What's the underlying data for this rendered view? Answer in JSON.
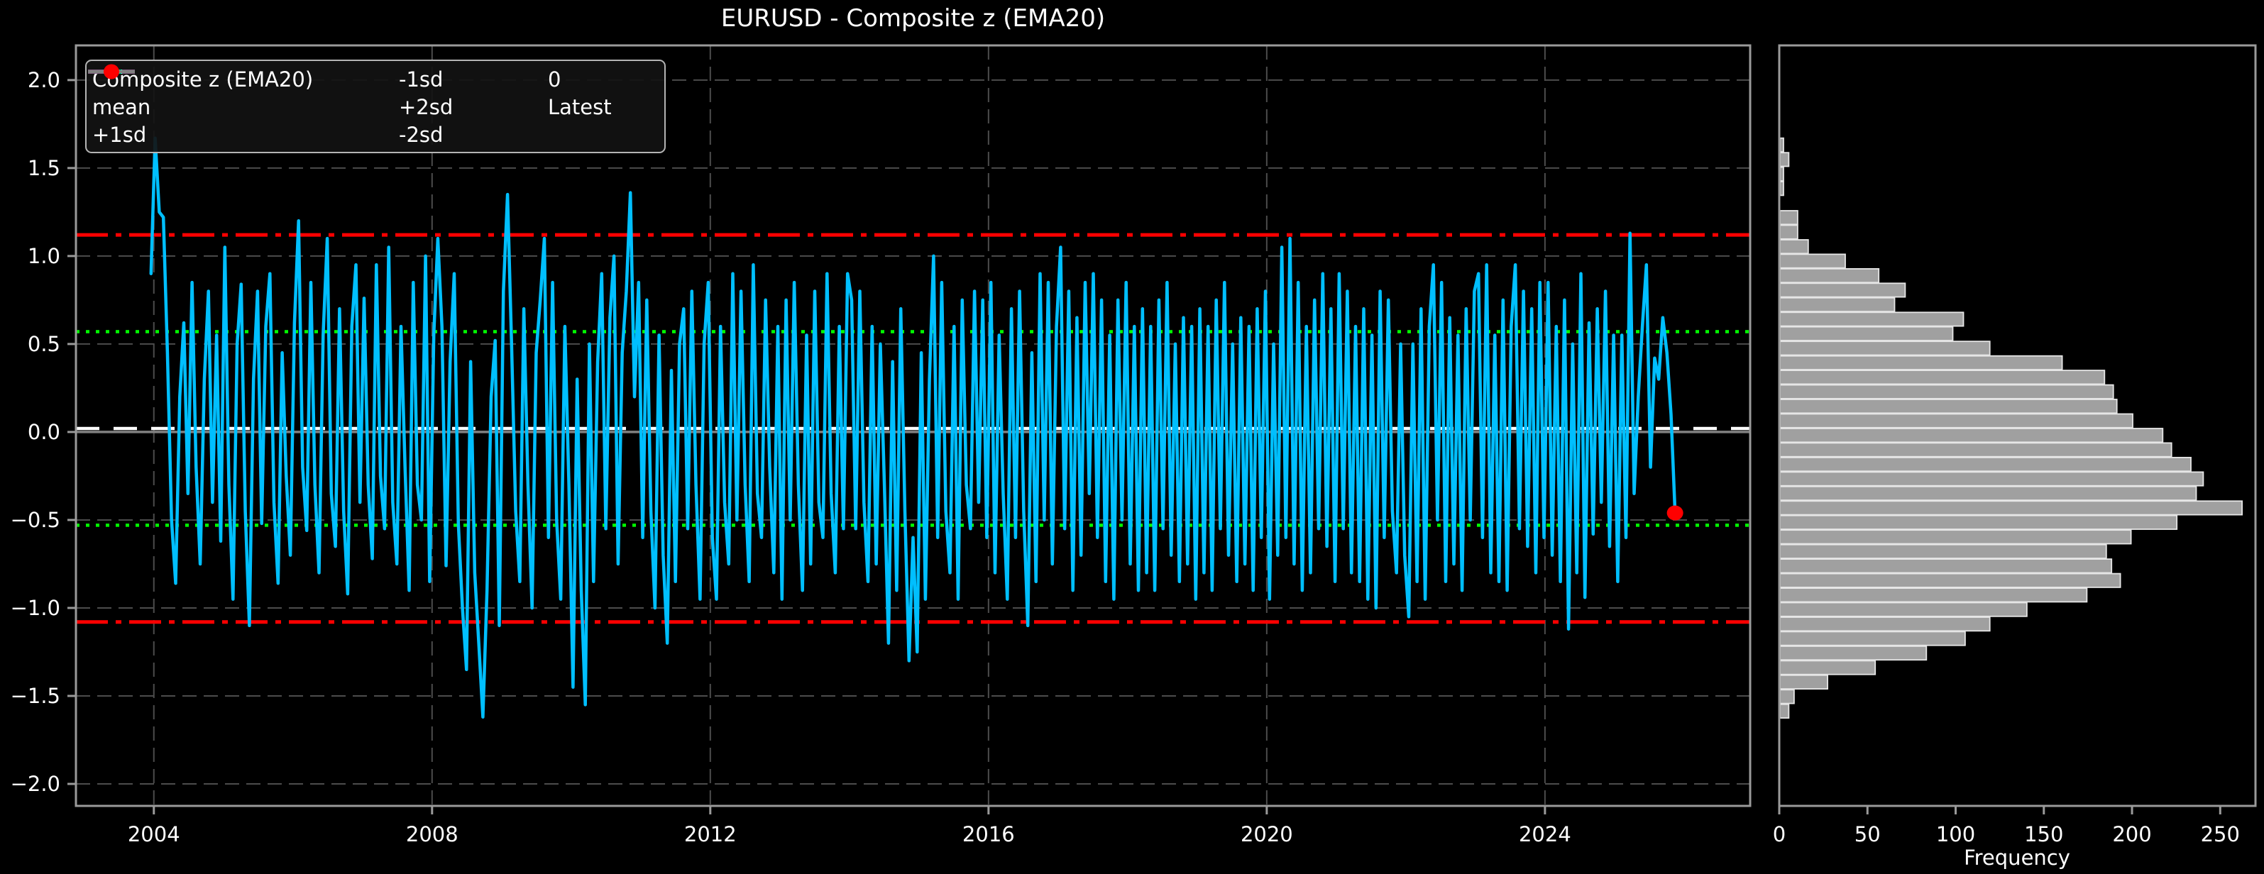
{
  "title": "EURUSD - Composite z (EMA20)",
  "colors": {
    "background": "#000000",
    "text": "#ffffff",
    "grid": "#4c4c4c",
    "spine": "#9a9a9a",
    "series": "#00bfff",
    "mean": "#ffffff",
    "sd1": "#00ff00",
    "sd2": "#ff0000",
    "zero": "#808080",
    "latest": "#ff0000",
    "hist_fill": "#a0a0a0",
    "hist_edge": "#e6e6e6"
  },
  "legend": {
    "items": [
      {
        "label": "Composite z (EMA20)",
        "style": "solid-cyan"
      },
      {
        "label": "mean",
        "style": "dashed-white"
      },
      {
        "label": "+1sd",
        "style": "dotted-green"
      },
      {
        "label": "-1sd",
        "style": "dotted-green"
      },
      {
        "label": "+2sd",
        "style": "dashdot-red"
      },
      {
        "label": "-2sd",
        "style": "dashdot-red"
      },
      {
        "label": "0",
        "style": "solid-gray"
      },
      {
        "label": "Latest",
        "style": "red-dot"
      }
    ]
  },
  "chart_data": [
    {
      "type": "line",
      "title": "EURUSD - Composite z (EMA20)",
      "xlabel": "",
      "ylabel": "",
      "grid": true,
      "legend_position": "upper left",
      "xlim": [
        2002.88,
        2026.95
      ],
      "ylim": [
        -2.125,
        2.197
      ],
      "xticks": [
        2004,
        2008,
        2012,
        2016,
        2020,
        2024
      ],
      "xtick_labels": [
        "2004",
        "2008",
        "2012",
        "2016",
        "2020",
        "2024"
      ],
      "yticks": [
        2.0,
        1.5,
        1.0,
        0.5,
        0.0,
        -0.5,
        -1.0,
        -1.5,
        -2.0
      ],
      "ytick_labels": [
        "2.0",
        "1.5",
        "1.0",
        "0.5",
        "0.0",
        "−0.5",
        "−1.0",
        "−1.5",
        "−2.0"
      ],
      "ref_lines": [
        {
          "name": "mean",
          "value": 0.02
        },
        {
          "name": "+1sd",
          "value": 0.57
        },
        {
          "name": "-1sd",
          "value": -0.53
        },
        {
          "name": "+2sd",
          "value": 1.12
        },
        {
          "name": "-2sd",
          "value": -1.08
        },
        {
          "name": "0",
          "value": 0.0
        }
      ],
      "latest_point": {
        "x": 2025.87,
        "y": -0.46
      },
      "series": [
        {
          "name": "Composite z (EMA20)",
          "x_start": 2003.96,
          "x_step": 0.0589,
          "values": [
            0.9,
            1.67,
            1.25,
            1.22,
            0.45,
            -0.5,
            -0.86,
            0.2,
            0.62,
            -0.35,
            0.85,
            -0.2,
            -0.75,
            0.3,
            0.8,
            -0.4,
            0.55,
            -0.62,
            1.05,
            -0.3,
            -0.95,
            0.5,
            0.84,
            -0.45,
            -1.1,
            0.3,
            0.8,
            -0.52,
            0.6,
            0.9,
            -0.4,
            -0.86,
            0.45,
            -0.25,
            -0.7,
            0.62,
            1.2,
            -0.2,
            -0.56,
            0.85,
            -0.3,
            -0.8,
            0.55,
            1.1,
            -0.35,
            -0.65,
            0.7,
            -0.45,
            -0.92,
            0.6,
            0.95,
            -0.4,
            0.76,
            -0.3,
            -0.72,
            0.95,
            -0.25,
            -0.55,
            1.05,
            -0.4,
            -0.75,
            0.6,
            -0.2,
            -0.9,
            0.85,
            -0.3,
            -0.5,
            1.0,
            -0.85,
            0.55,
            1.1,
            0.6,
            -0.76,
            0.4,
            0.9,
            -0.52,
            -1.0,
            -1.35,
            0.4,
            -0.8,
            -1.2,
            -1.62,
            -0.9,
            0.2,
            0.52,
            -1.1,
            0.8,
            1.35,
            0.5,
            -0.45,
            -0.85,
            0.7,
            -0.3,
            -1.0,
            0.45,
            0.75,
            1.1,
            -0.6,
            0.85,
            -0.5,
            -0.95,
            0.6,
            -0.3,
            -1.45,
            0.3,
            -0.9,
            -1.55,
            0.5,
            -0.85,
            0.4,
            0.9,
            -0.55,
            0.65,
            1.0,
            -0.75,
            0.45,
            0.8,
            1.36,
            0.2,
            0.85,
            -0.6,
            0.75,
            -0.45,
            -1.0,
            0.55,
            -0.7,
            -1.2,
            0.35,
            -0.85,
            0.5,
            0.7,
            -0.55,
            0.8,
            -0.3,
            -0.95,
            0.5,
            0.85,
            -0.6,
            -0.95,
            0.6,
            -0.4,
            -0.75,
            0.9,
            -0.5,
            0.8,
            -0.3,
            -0.85,
            0.95,
            -0.35,
            -0.6,
            0.75,
            -0.2,
            -0.8,
            0.6,
            -0.95,
            0.75,
            -0.5,
            0.85,
            -0.3,
            -0.9,
            0.55,
            -0.75,
            0.8,
            -0.4,
            -0.6,
            0.9,
            -0.35,
            -0.8,
            0.6,
            -0.55,
            0.9,
            0.75,
            -0.55,
            0.8,
            -0.4,
            -0.85,
            0.6,
            -0.75,
            0.5,
            -0.3,
            -1.2,
            0.4,
            -0.9,
            0.7,
            -0.45,
            -1.3,
            -0.6,
            -1.25,
            0.45,
            -0.95,
            0.3,
            1.0,
            -0.6,
            0.85,
            -0.45,
            -0.8,
            0.6,
            -0.95,
            0.75,
            -0.3,
            -0.55,
            0.8,
            -0.4,
            0.75,
            -0.6,
            0.85,
            -0.8,
            0.55,
            -0.35,
            -0.95,
            0.7,
            -0.6,
            0.8,
            -0.45,
            -1.1,
            0.45,
            -0.85,
            0.9,
            -0.5,
            0.85,
            -0.75,
            0.6,
            1.05,
            -0.55,
            0.8,
            -0.9,
            0.65,
            -0.7,
            0.85,
            -0.35,
            0.9,
            -0.6,
            0.75,
            -0.85,
            0.55,
            -0.95,
            0.75,
            -0.5,
            0.85,
            -0.75,
            0.6,
            -0.9,
            0.7,
            -0.8,
            0.6,
            -0.9,
            0.75,
            -0.55,
            0.85,
            -0.7,
            0.5,
            -0.85,
            0.65,
            -0.75,
            0.6,
            -0.95,
            0.7,
            -0.8,
            0.6,
            -0.9,
            0.75,
            -0.55,
            0.85,
            -0.7,
            0.5,
            -0.85,
            0.65,
            -0.75,
            0.6,
            -0.9,
            0.7,
            -0.6,
            0.8,
            -0.95,
            0.5,
            -0.7,
            1.05,
            -0.6,
            1.1,
            -0.75,
            0.85,
            -0.9,
            0.6,
            -0.8,
            0.75,
            -0.55,
            0.9,
            -0.65,
            0.7,
            -0.85,
            0.9,
            -0.55,
            0.8,
            -0.8,
            0.6,
            -0.85,
            0.7,
            -0.95,
            0.55,
            -1.0,
            0.8,
            -0.6,
            0.75,
            -0.45,
            -0.8,
            0.5,
            -0.7,
            -1.05,
            0.5,
            -0.85,
            0.7,
            -0.95,
            0.6,
            0.95,
            -0.5,
            0.85,
            -0.85,
            0.65,
            -0.75,
            0.55,
            -0.9,
            0.7,
            -0.5,
            0.8,
            0.9,
            -0.6,
            0.95,
            -0.8,
            0.55,
            -0.85,
            0.75,
            -0.9,
            0.6,
            0.95,
            -0.55,
            0.8,
            -0.65,
            0.7,
            -0.8,
            0.85,
            -0.6,
            0.85,
            -0.7,
            0.6,
            -0.85,
            0.75,
            -1.12,
            0.5,
            -0.8,
            0.9,
            -0.94,
            0.62,
            -0.58,
            0.7,
            -0.4,
            0.8,
            -0.65,
            0.55,
            -0.85,
            0.55,
            -0.6,
            1.13,
            -0.35,
            0.2,
            0.6,
            0.95,
            -0.2,
            0.42,
            0.3,
            0.65,
            0.45,
            0.1,
            -0.46
          ]
        }
      ]
    },
    {
      "type": "bar",
      "subtype": "histogram",
      "orientation": "horizontal",
      "xlabel": "Frequency",
      "ylabel": "",
      "grid": false,
      "xlim": [
        0,
        270
      ],
      "xticks": [
        0,
        50,
        100,
        150,
        200,
        250
      ],
      "xtick_labels": [
        "0",
        "50",
        "100",
        "150",
        "200",
        "250"
      ],
      "ylim": [
        -2.125,
        2.197
      ],
      "bins": {
        "z_max": 1.67,
        "z_min": -1.63,
        "counts_top_to_bottom": [
          2,
          5,
          2,
          2,
          0,
          10,
          10,
          16,
          37,
          56,
          71,
          65,
          104,
          98,
          119,
          160,
          184,
          189,
          191,
          200,
          217,
          222,
          233,
          240,
          236,
          262,
          225,
          199,
          185,
          188,
          193,
          174,
          140,
          119,
          105,
          83,
          54,
          27,
          8,
          5
        ]
      }
    }
  ]
}
